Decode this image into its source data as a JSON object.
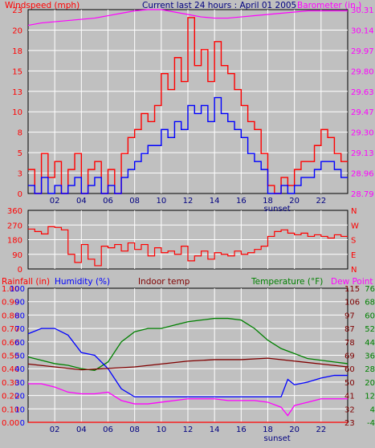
{
  "colors": {
    "background": "#c0c0c0",
    "plot_bg": "#c0c0c0",
    "grid": "#ffffff",
    "wind_max": "#ff0000",
    "wind_avg": "#0000ff",
    "barometer": "#ff00ff",
    "direction": "#ff0000",
    "temperature": "#008000",
    "indoor": "#800000",
    "humidity": "#0000ff",
    "dewpoint": "#ff00ff",
    "rain": "#ff0000",
    "title": "#000080"
  },
  "header": {
    "windspeed_label": "Windspeed (mph)",
    "title": "Current last 24 hours : April 01 2005",
    "barometer_label": "Barometer (in.)"
  },
  "middle": {
    "direction_labels_right": [
      "N",
      "W",
      "S",
      "E",
      "N"
    ]
  },
  "bottom": {
    "rainfall_label": "Rainfall (in)",
    "humidity_label": "Humidity (%)",
    "indoor_label": "Indoor temp",
    "temperature_label": "Temperature (°F)",
    "dewpoint_label": "Dew Point"
  },
  "x_marker": "sunset",
  "chart_data": [
    {
      "type": "line",
      "title": "Current last 24 hours : April 01 2005",
      "x_ticks": [
        "02",
        "04",
        "06",
        "08",
        "10",
        "12",
        "14",
        "16",
        "18",
        "20",
        "22"
      ],
      "x_range": [
        0,
        24
      ],
      "sunset_hour": 18.7,
      "y_left_label": "Windspeed (mph)",
      "y_left_ticks": [
        "0",
        "3",
        "5",
        "8",
        "10",
        "13",
        "15",
        "18",
        "20",
        "23"
      ],
      "y_left_range": [
        0,
        23
      ],
      "y_right_label": "Barometer (in.)",
      "y_right_ticks": [
        "28.79",
        "28.96",
        "29.13",
        "29.30",
        "29.47",
        "29.63",
        "29.80",
        "29.97",
        "30.14",
        "30.31"
      ],
      "y_right_range": [
        28.79,
        30.31
      ],
      "grid": true,
      "series": [
        {
          "name": "Barometer (in.)",
          "axis": "right",
          "x": [
            0,
            1,
            2,
            3,
            4,
            5,
            6,
            7,
            8,
            9,
            10,
            11,
            12,
            13,
            14,
            15,
            16,
            17,
            18,
            19,
            20,
            21,
            22,
            23,
            24
          ],
          "values": [
            30.18,
            30.2,
            30.21,
            30.22,
            30.23,
            30.24,
            30.26,
            30.28,
            30.3,
            30.31,
            30.31,
            30.29,
            30.27,
            30.25,
            30.24,
            30.24,
            30.25,
            30.26,
            30.27,
            30.28,
            30.29,
            30.3,
            30.3,
            30.3,
            30.3
          ]
        },
        {
          "name": "Wind gust",
          "axis": "left",
          "x": [
            0,
            0.5,
            1,
            1.5,
            2,
            2.5,
            3,
            3.5,
            4,
            4.5,
            5,
            5.5,
            6,
            6.5,
            7,
            7.5,
            8,
            8.5,
            9,
            9.5,
            10,
            10.5,
            11,
            11.5,
            12,
            12.5,
            13,
            13.5,
            14,
            14.5,
            15,
            15.5,
            16,
            16.5,
            17,
            17.5,
            18,
            18.5,
            19,
            19.5,
            20,
            20.5,
            21,
            21.5,
            22,
            22.5,
            23,
            23.5
          ],
          "values": [
            3,
            0,
            5,
            2,
            4,
            0,
            3,
            5,
            0,
            3,
            4,
            0,
            3,
            0,
            5,
            7,
            8,
            10,
            9,
            11,
            15,
            13,
            17,
            14,
            22,
            16,
            18,
            14,
            19,
            16,
            15,
            13,
            11,
            9,
            8,
            5,
            1,
            0,
            2,
            1,
            3,
            4,
            4,
            6,
            8,
            7,
            5,
            4
          ]
        },
        {
          "name": "Wind average",
          "axis": "left",
          "x": [
            0,
            0.5,
            1,
            1.5,
            2,
            2.5,
            3,
            3.5,
            4,
            4.5,
            5,
            5.5,
            6,
            6.5,
            7,
            7.5,
            8,
            8.5,
            9,
            9.5,
            10,
            10.5,
            11,
            11.5,
            12,
            12.5,
            13,
            13.5,
            14,
            14.5,
            15,
            15.5,
            16,
            16.5,
            17,
            17.5,
            18,
            18.5,
            19,
            19.5,
            20,
            20.5,
            21,
            21.5,
            22,
            22.5,
            23,
            23.5
          ],
          "values": [
            1,
            0,
            2,
            0,
            1,
            0,
            1,
            2,
            0,
            1,
            2,
            0,
            1,
            0,
            2,
            3,
            4,
            5,
            6,
            6,
            8,
            7,
            9,
            8,
            11,
            10,
            11,
            9,
            12,
            10,
            9,
            8,
            7,
            5,
            4,
            3,
            0,
            0,
            1,
            0,
            1,
            2,
            2,
            3,
            4,
            4,
            3,
            2
          ]
        }
      ]
    },
    {
      "type": "line",
      "y_left_ticks": [
        "0",
        "90",
        "180",
        "270",
        "360"
      ],
      "y_left_range": [
        0,
        360
      ],
      "y_right_ticks": [
        "N",
        "E",
        "S",
        "W",
        "N"
      ],
      "x_range": [
        0,
        24
      ],
      "series": [
        {
          "name": "Wind direction",
          "x": [
            0,
            0.5,
            1,
            1.5,
            2,
            2.5,
            3,
            3.5,
            4,
            4.5,
            5,
            5.5,
            6,
            6.5,
            7,
            7.5,
            8,
            8.5,
            9,
            9.5,
            10,
            10.5,
            11,
            11.5,
            12,
            12.5,
            13,
            13.5,
            14,
            14.5,
            15,
            15.5,
            16,
            16.5,
            17,
            17.5,
            18,
            18.5,
            19,
            19.5,
            20,
            20.5,
            21,
            21.5,
            22,
            22.5,
            23,
            23.5
          ],
          "values": [
            245,
            230,
            215,
            260,
            255,
            240,
            90,
            40,
            150,
            60,
            20,
            140,
            130,
            150,
            110,
            160,
            120,
            150,
            80,
            130,
            100,
            110,
            90,
            140,
            50,
            80,
            110,
            60,
            100,
            90,
            80,
            110,
            90,
            100,
            120,
            140,
            200,
            230,
            240,
            220,
            210,
            220,
            200,
            210,
            200,
            190,
            210,
            200
          ]
        }
      ]
    },
    {
      "type": "line",
      "x_range": [
        0,
        24
      ],
      "sunset_hour": 18.7,
      "rain_ticks": [
        "0.00",
        "0.10",
        "0.20",
        "0.30",
        "0.40",
        "0.50",
        "0.60",
        "0.70",
        "0.80",
        "0.90",
        "1.00"
      ],
      "humidity_ticks": [
        "0",
        "10",
        "20",
        "30",
        "40",
        "50",
        "60",
        "70",
        "80",
        "90",
        "100"
      ],
      "indoor_ticks": [
        "23",
        "32",
        "41",
        "50",
        "60",
        "69",
        "78",
        "87",
        "97",
        "106",
        "115"
      ],
      "temp_ticks": [
        "-4",
        "4",
        "12",
        "20",
        "28",
        "36",
        "44",
        "52",
        "60",
        "68",
        "76"
      ],
      "grid": true,
      "series": [
        {
          "name": "Temperature (°F)",
          "x": [
            0,
            1,
            2,
            3,
            4,
            5,
            6,
            7,
            8,
            9,
            10,
            11,
            12,
            13,
            14,
            15,
            16,
            17,
            18,
            19,
            20,
            21,
            22,
            23,
            24
          ],
          "values": [
            35,
            33,
            31,
            30,
            28,
            27,
            32,
            44,
            50,
            52,
            52,
            54,
            56,
            57,
            58,
            58,
            57,
            52,
            45,
            40,
            37,
            34,
            33,
            32,
            31
          ]
        },
        {
          "name": "Humidity (%)",
          "x": [
            0,
            1,
            2,
            3,
            4,
            5,
            6,
            7,
            8,
            9,
            10,
            11,
            12,
            13,
            14,
            15,
            16,
            17,
            18,
            19,
            19.5,
            20,
            21,
            22,
            23,
            24
          ],
          "values": [
            66,
            70,
            70,
            65,
            52,
            50,
            40,
            25,
            19,
            19,
            19,
            19,
            19,
            19,
            19,
            19,
            19,
            19,
            19,
            19,
            32,
            28,
            30,
            33,
            35,
            35
          ]
        },
        {
          "name": "Indoor temp",
          "x": [
            0,
            2,
            4,
            6,
            8,
            10,
            12,
            14,
            16,
            18,
            20,
            22,
            24
          ],
          "values": [
            63,
            61,
            59,
            60,
            61,
            63,
            65,
            66,
            66,
            67,
            65,
            63,
            61
          ]
        },
        {
          "name": "Dew Point",
          "x": [
            0,
            1,
            2,
            3,
            4,
            5,
            6,
            7,
            8,
            9,
            10,
            11,
            12,
            13,
            14,
            15,
            16,
            17,
            18,
            19,
            19.5,
            20,
            21,
            22,
            23,
            24
          ],
          "values": [
            19,
            19,
            17,
            14,
            13,
            13,
            14,
            9,
            7,
            7,
            8,
            9,
            10,
            10,
            10,
            9,
            9,
            9,
            8,
            5,
            0,
            6,
            8,
            10,
            10,
            10
          ]
        },
        {
          "name": "Rainfall (in)",
          "x": [
            0,
            24
          ],
          "values": [
            0,
            0
          ]
        }
      ]
    }
  ]
}
